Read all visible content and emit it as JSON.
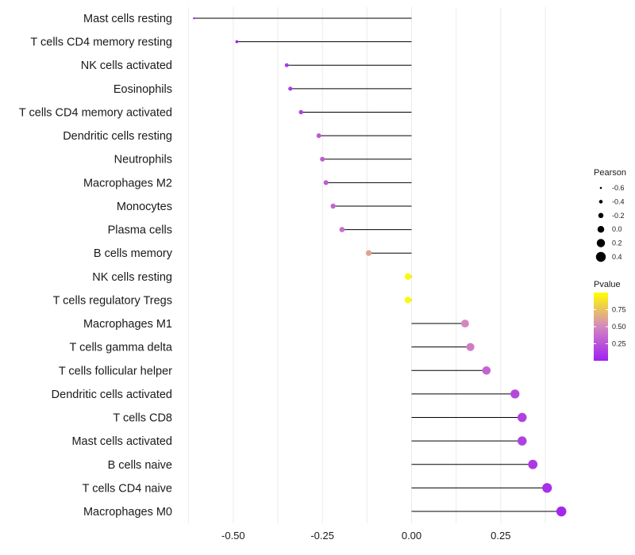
{
  "chart_data": {
    "type": "lollipop",
    "title": "",
    "xlabel": "",
    "ylabel": "",
    "xlim": [
      -0.62,
      0.43
    ],
    "xticks": [
      -0.5,
      -0.25,
      0.0,
      0.25
    ],
    "xtick_labels": [
      "-0.50",
      "-0.25",
      "0.00",
      "0.25"
    ],
    "grid": true,
    "categories": [
      "Mast cells resting",
      "T cells CD4 memory resting",
      "NK cells activated",
      "Eosinophils",
      "T cells CD4 memory activated",
      "Dendritic cells resting",
      "Neutrophils",
      "Macrophages M2",
      "Monocytes",
      "Plasma cells",
      "B cells memory",
      "NK cells resting",
      "T cells regulatory  Tregs",
      "Macrophages M1",
      "T cells gamma delta",
      "T cells follicular helper",
      "Dendritic cells activated",
      "T cells CD8",
      "Mast cells activated",
      "B cells naive",
      "T cells CD4 naive",
      "Macrophages M0"
    ],
    "pearson": [
      -0.61,
      -0.49,
      -0.35,
      -0.34,
      -0.31,
      -0.26,
      -0.25,
      -0.24,
      -0.22,
      -0.195,
      -0.12,
      -0.01,
      -0.01,
      0.15,
      0.165,
      0.21,
      0.29,
      0.31,
      0.31,
      0.34,
      0.38,
      0.42
    ],
    "pvalue": [
      0.003,
      0.02,
      0.12,
      0.13,
      0.16,
      0.28,
      0.29,
      0.3,
      0.33,
      0.38,
      0.62,
      0.97,
      0.97,
      0.5,
      0.45,
      0.33,
      0.2,
      0.16,
      0.16,
      0.12,
      0.08,
      0.04
    ],
    "size_legend": {
      "title": "Pearson",
      "values": [
        -0.6,
        -0.4,
        -0.2,
        0.0,
        0.2,
        0.4
      ],
      "labels": [
        "-0.6",
        "-0.4",
        "-0.2",
        "0.0",
        "0.2",
        "0.4"
      ]
    },
    "color_legend": {
      "title": "Pvalue",
      "range": [
        0.0,
        1.0
      ],
      "ticks": [
        0.25,
        0.5,
        0.75
      ],
      "tick_labels": [
        "0.25",
        "0.50",
        "0.75"
      ],
      "low_color": "#a020f0",
      "mid_color": "#d387c0",
      "high_color": "#ffff00"
    },
    "stem_color": "#000000",
    "grid_color": "#ebebeb"
  }
}
